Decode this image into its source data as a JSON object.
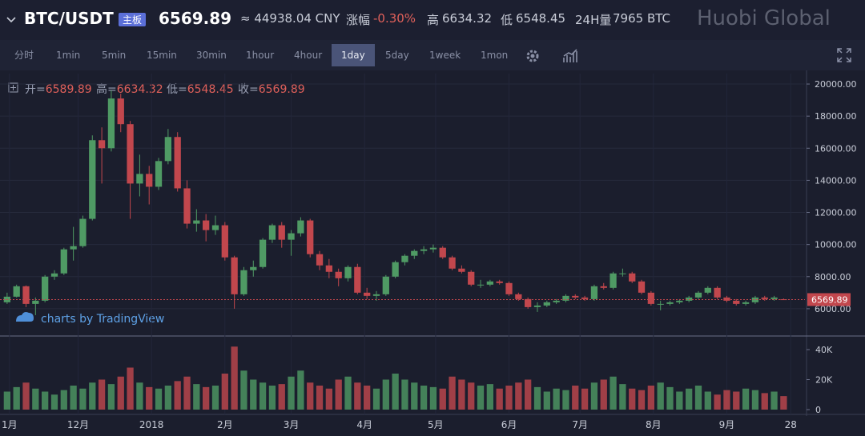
{
  "header": {
    "symbol": "BTC/USDT",
    "badge": "主板",
    "price": "6569.89",
    "cny": "≈ 44938.04 CNY",
    "change_label": "涨幅",
    "change": "-0.30%",
    "high_label": "高",
    "high": "6634.32",
    "low_label": "低",
    "low": "6548.45",
    "volume_label": "24H量",
    "volume": "7965 BTC",
    "brand": "Huobi Global"
  },
  "toolbar": {
    "intervals": [
      "分时",
      "1min",
      "5min",
      "15min",
      "30min",
      "1hour",
      "4hour",
      "1day",
      "5day",
      "1week",
      "1mon"
    ],
    "active": 7
  },
  "chart": {
    "type": "candlestick",
    "ohlc_legend": [
      {
        "label": "开=",
        "value": "6589.89"
      },
      {
        "label": "高=",
        "value": "6634.32"
      },
      {
        "label": "低=",
        "value": "6548.45"
      },
      {
        "label": "收=",
        "value": "6569.89"
      }
    ],
    "x": [
      0,
      4,
      8,
      12,
      16,
      20,
      24,
      28,
      32,
      36,
      40,
      44,
      48,
      52,
      56,
      60,
      64,
      68,
      72,
      76,
      80,
      84,
      88,
      92,
      96,
      100,
      104,
      108,
      112,
      116,
      120,
      124,
      128,
      132,
      136,
      140,
      144,
      148,
      152,
      156,
      160,
      164,
      168,
      172,
      176,
      180,
      184,
      188,
      192,
      196,
      200,
      204,
      208,
      212,
      216,
      220,
      224,
      228,
      232,
      236,
      240,
      244,
      248,
      252,
      256,
      260,
      264,
      268,
      272,
      276,
      280,
      284,
      288,
      292,
      296,
      300,
      304,
      308,
      312,
      316,
      320,
      324,
      328
    ],
    "candles": [
      [
        6400,
        7000,
        6300,
        6750
      ],
      [
        6750,
        7500,
        6700,
        7400
      ],
      [
        7400,
        7450,
        6100,
        6300
      ],
      [
        6300,
        6700,
        5600,
        6500
      ],
      [
        6500,
        8100,
        6400,
        8000
      ],
      [
        8000,
        8400,
        7800,
        8200
      ],
      [
        8200,
        9800,
        8100,
        9700
      ],
      [
        9700,
        11100,
        9000,
        9900
      ],
      [
        9900,
        11800,
        9800,
        11600
      ],
      [
        11600,
        16800,
        11500,
        16500
      ],
      [
        16500,
        17300,
        13800,
        16000
      ],
      [
        16000,
        19600,
        15800,
        19100
      ],
      [
        19100,
        19400,
        17000,
        17500
      ],
      [
        17500,
        17700,
        11600,
        13800
      ],
      [
        13800,
        15600,
        13000,
        14400
      ],
      [
        14400,
        14900,
        12500,
        13600
      ],
      [
        13600,
        15400,
        13400,
        15200
      ],
      [
        15200,
        17200,
        15000,
        16700
      ],
      [
        16700,
        17000,
        13300,
        13500
      ],
      [
        13500,
        14000,
        11000,
        11300
      ],
      [
        11300,
        12200,
        10800,
        11500
      ],
      [
        11500,
        11900,
        10200,
        10900
      ],
      [
        10900,
        11800,
        10600,
        11200
      ],
      [
        11200,
        11400,
        9000,
        9200
      ],
      [
        9200,
        9300,
        6000,
        6900
      ],
      [
        6900,
        8600,
        6800,
        8400
      ],
      [
        8400,
        9000,
        8000,
        8600
      ],
      [
        8600,
        10400,
        8500,
        10300
      ],
      [
        10300,
        11300,
        10100,
        11200
      ],
      [
        11200,
        11400,
        9800,
        10300
      ],
      [
        10300,
        10900,
        9300,
        10700
      ],
      [
        10700,
        11700,
        10500,
        11500
      ],
      [
        11500,
        11600,
        9200,
        9400
      ],
      [
        9400,
        9600,
        8400,
        8700
      ],
      [
        8700,
        9100,
        7900,
        8300
      ],
      [
        8300,
        8500,
        7400,
        7900
      ],
      [
        7900,
        8700,
        7700,
        8600
      ],
      [
        8600,
        8800,
        6900,
        7000
      ],
      [
        7000,
        7300,
        6600,
        6800
      ],
      [
        6800,
        7100,
        6500,
        6900
      ],
      [
        6900,
        8100,
        6800,
        8000
      ],
      [
        8000,
        9000,
        7900,
        8900
      ],
      [
        8900,
        9400,
        8700,
        9300
      ],
      [
        9300,
        9700,
        9100,
        9600
      ],
      [
        9600,
        9900,
        9400,
        9700
      ],
      [
        9700,
        10000,
        9500,
        9800
      ],
      [
        9800,
        9900,
        9100,
        9200
      ],
      [
        9200,
        9300,
        8400,
        8500
      ],
      [
        8500,
        8700,
        8200,
        8300
      ],
      [
        8300,
        8400,
        7400,
        7500
      ],
      [
        7500,
        7800,
        7300,
        7500
      ],
      [
        7500,
        7800,
        7400,
        7700
      ],
      [
        7700,
        7800,
        7500,
        7600
      ],
      [
        7600,
        7700,
        6800,
        6900
      ],
      [
        6900,
        7000,
        6500,
        6600
      ],
      [
        6600,
        6700,
        6000,
        6100
      ],
      [
        6100,
        6400,
        5800,
        6200
      ],
      [
        6200,
        6500,
        6100,
        6400
      ],
      [
        6400,
        6600,
        6300,
        6500
      ],
      [
        6500,
        6900,
        6400,
        6800
      ],
      [
        6800,
        6900,
        6600,
        6700
      ],
      [
        6700,
        6800,
        6500,
        6600
      ],
      [
        6600,
        7500,
        6500,
        7400
      ],
      [
        7400,
        7600,
        7200,
        7300
      ],
      [
        7300,
        8300,
        7200,
        8200
      ],
      [
        8200,
        8500,
        8000,
        8200
      ],
      [
        8200,
        8300,
        7600,
        7700
      ],
      [
        7700,
        7800,
        6900,
        7000
      ],
      [
        7000,
        7100,
        6200,
        6300
      ],
      [
        6300,
        6500,
        5900,
        6300
      ],
      [
        6300,
        6500,
        6200,
        6400
      ],
      [
        6400,
        6600,
        6300,
        6500
      ],
      [
        6500,
        6800,
        6400,
        6700
      ],
      [
        6700,
        7100,
        6600,
        7000
      ],
      [
        7000,
        7400,
        6900,
        7300
      ],
      [
        7300,
        7400,
        6600,
        6700
      ],
      [
        6700,
        6800,
        6400,
        6500
      ],
      [
        6500,
        6600,
        6200,
        6300
      ],
      [
        6300,
        6500,
        6200,
        6400
      ],
      [
        6400,
        6800,
        6300,
        6700
      ],
      [
        6700,
        6800,
        6500,
        6600
      ],
      [
        6600,
        6800,
        6500,
        6700
      ],
      [
        6589.89,
        6634.32,
        6548.45,
        6569.89
      ]
    ],
    "volumes": [
      12000,
      15000,
      18000,
      14000,
      12000,
      10000,
      13000,
      16000,
      14000,
      18000,
      20000,
      17000,
      22000,
      28000,
      18000,
      15000,
      14000,
      16000,
      19000,
      22000,
      17000,
      15000,
      16000,
      24000,
      42000,
      26000,
      20000,
      18000,
      16000,
      17000,
      22000,
      26000,
      18000,
      16000,
      14000,
      20000,
      22000,
      18000,
      16000,
      14000,
      20000,
      24000,
      20000,
      18000,
      16000,
      15000,
      14000,
      22000,
      20000,
      18000,
      16000,
      17000,
      14000,
      16000,
      18000,
      20000,
      15000,
      12000,
      14000,
      13000,
      16000,
      14000,
      18000,
      20000,
      22000,
      17000,
      14000,
      13000,
      16000,
      18000,
      15000,
      12000,
      14000,
      16000,
      12000,
      10000,
      13000,
      12000,
      14000,
      13000,
      11000,
      12000,
      9000
    ],
    "xlim": [
      -3,
      337
    ],
    "xticks": [
      {
        "value": 1,
        "label": "1月"
      },
      {
        "value": 30,
        "label": "12月"
      },
      {
        "value": 61,
        "label": "2018"
      },
      {
        "value": 92,
        "label": "2月"
      },
      {
        "value": 120,
        "label": "3月"
      },
      {
        "value": 151,
        "label": "4月"
      },
      {
        "value": 181,
        "label": "5月"
      },
      {
        "value": 212,
        "label": "6月"
      },
      {
        "value": 242,
        "label": "7月"
      },
      {
        "value": 273,
        "label": "8月"
      },
      {
        "value": 304,
        "label": "9月"
      },
      {
        "value": 331,
        "label": "28"
      }
    ],
    "ylim": [
      4400,
      20650
    ],
    "yticks": [
      {
        "value": 6000,
        "label": "6000.00"
      },
      {
        "value": 8000,
        "label": "8000.00"
      },
      {
        "value": 10000,
        "label": "10000.00"
      },
      {
        "value": 12000,
        "label": "12000.00"
      },
      {
        "value": 14000,
        "label": "14000.00"
      },
      {
        "value": 16000,
        "label": "16000.00"
      },
      {
        "value": 18000,
        "label": "18000.00"
      },
      {
        "value": 20000,
        "label": "20000.00"
      }
    ],
    "vlim": [
      -1600,
      48000
    ],
    "vticks": [
      0,
      {
        "value": 20000,
        "label": "20K"
      },
      {
        "value": 40000,
        "label": "40K"
      }
    ],
    "last_price": 6569.89,
    "up_color": "#4f9a64",
    "down_color": "#c2474d",
    "credit": "charts by TradingView"
  }
}
